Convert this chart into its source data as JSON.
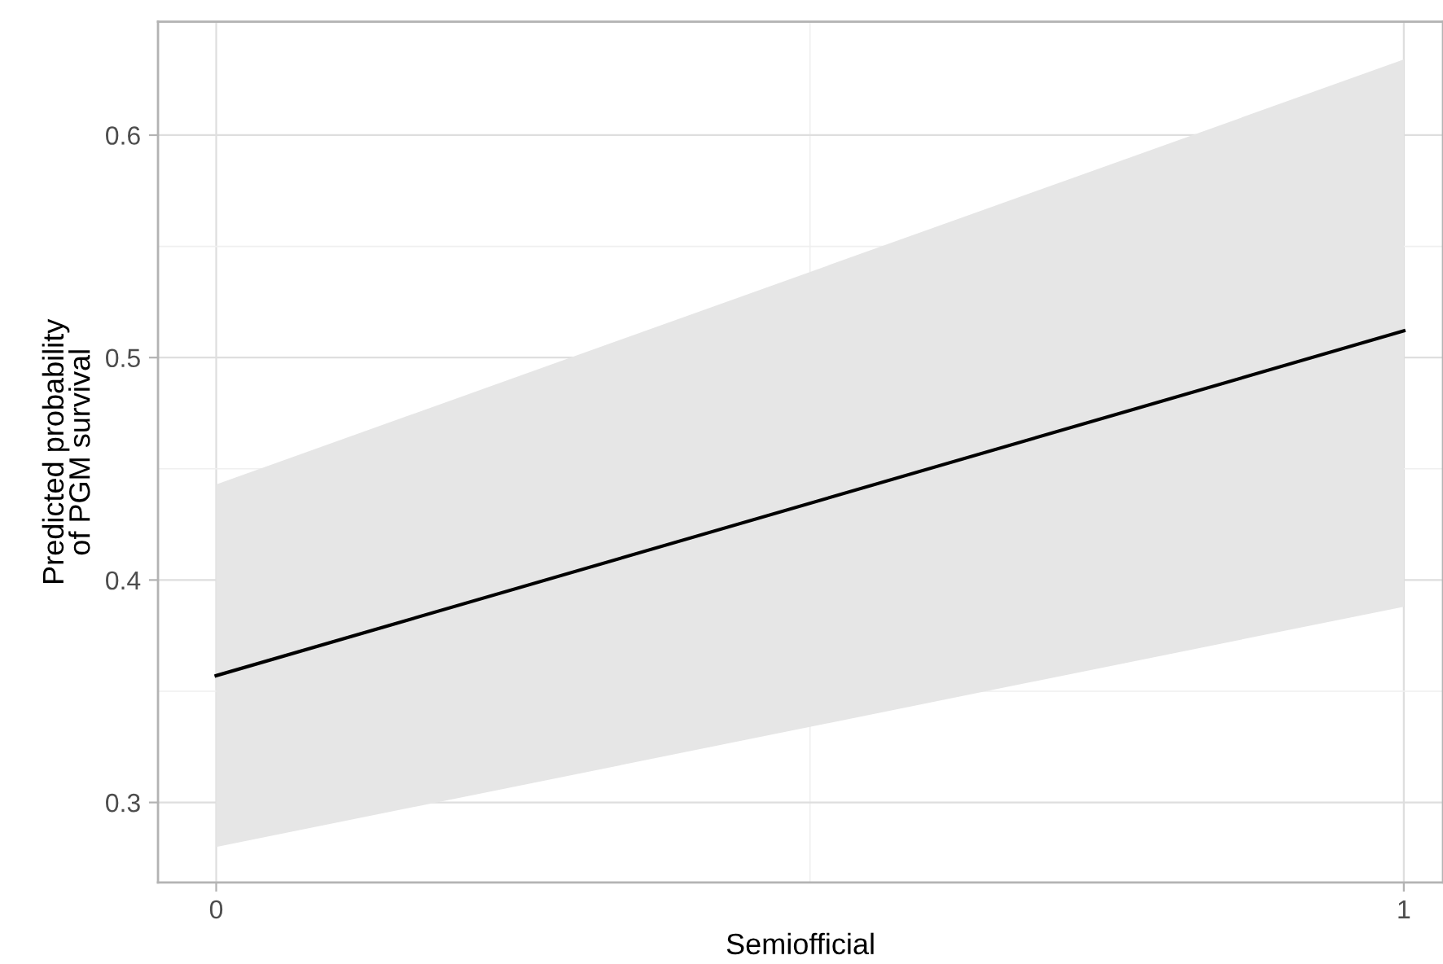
{
  "chart_data": {
    "type": "line",
    "xlabel": "Semiofficial",
    "ylabel": "Predicted probability\nof PGM survival",
    "x": [
      0,
      1
    ],
    "series": [
      {
        "color": "#000000",
        "values": [
          0.357,
          0.512
        ],
        "lower": [
          0.28,
          0.388
        ],
        "upper": [
          0.443,
          0.634
        ]
      }
    ],
    "xlim": [
      -0.049,
      1.033
    ],
    "xticks": [
      0,
      1
    ],
    "ylim": [
      0.264,
      0.651
    ],
    "yticks": [
      0.3,
      0.4,
      0.5,
      0.6
    ],
    "grid": true,
    "line_style": "solid",
    "marker": "none"
  }
}
